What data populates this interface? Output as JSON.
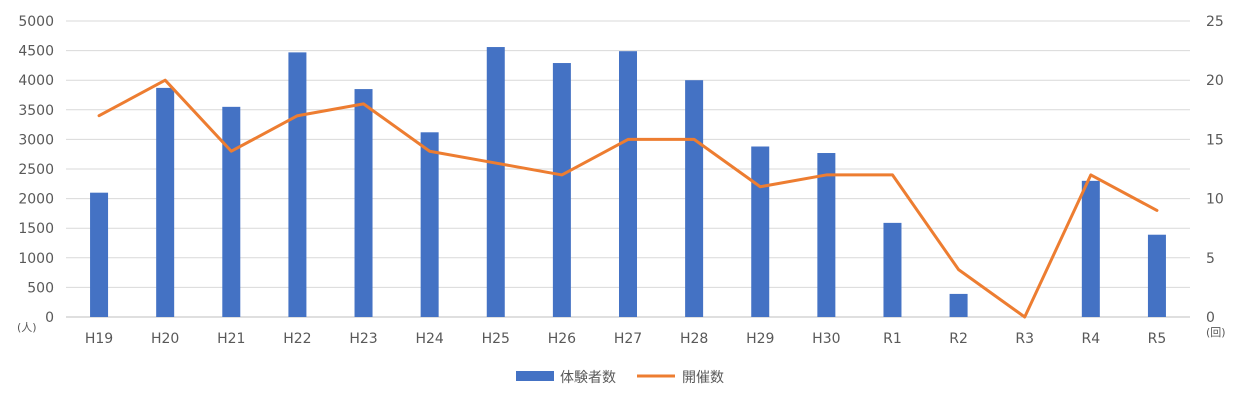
{
  "chart_data": {
    "type": "bar",
    "categories": [
      "H19",
      "H20",
      "H21",
      "H22",
      "H23",
      "H24",
      "H25",
      "H26",
      "H27",
      "H28",
      "H29",
      "H30",
      "R1",
      "R2",
      "R3",
      "R4",
      "R5"
    ],
    "series": [
      {
        "name": "体験者数",
        "type": "bar",
        "axis": "left",
        "color": "#4472C4",
        "values": [
          2100,
          3870,
          3550,
          4470,
          3850,
          3120,
          4560,
          4290,
          4490,
          4000,
          2880,
          2770,
          1590,
          390,
          0,
          2300,
          1390
        ]
      },
      {
        "name": "開催数",
        "type": "line",
        "axis": "right",
        "color": "#ED7D31",
        "values": [
          17,
          20,
          14,
          17,
          18,
          14,
          13,
          12,
          15,
          15,
          11,
          12,
          12,
          4,
          0,
          12,
          9
        ]
      }
    ],
    "y_left": {
      "min": 0,
      "max": 5000,
      "step": 500,
      "unit": "(人)"
    },
    "y_right": {
      "min": 0,
      "max": 25,
      "step": 5,
      "unit": "(回)"
    },
    "grid": true,
    "legend": "bottom-center"
  }
}
